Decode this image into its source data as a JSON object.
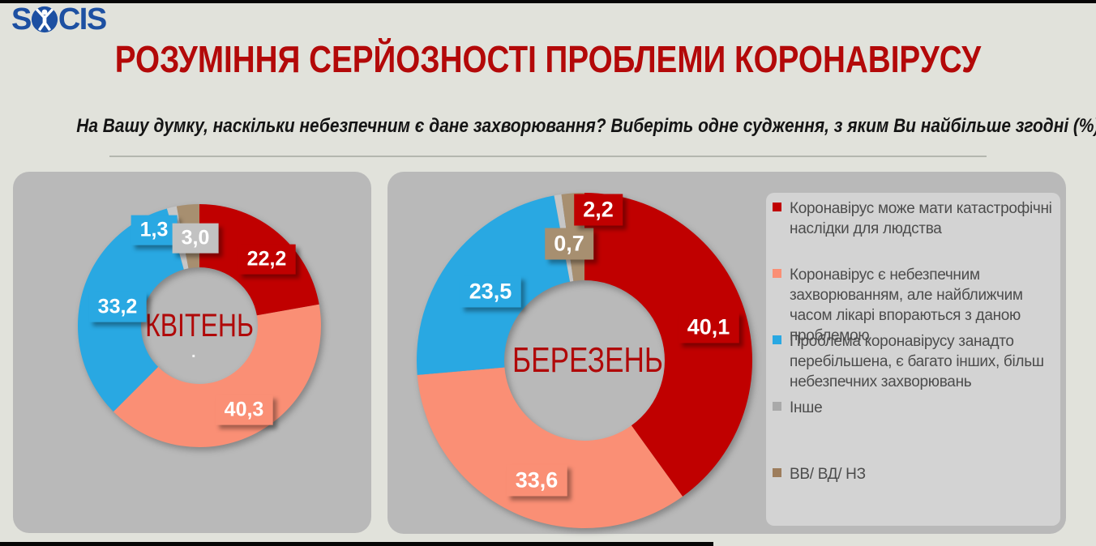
{
  "logo": {
    "part1": "S",
    "part2": "CIS",
    "icon": "person-in-circle"
  },
  "header": {
    "title": "РОЗУМІННЯ СЕРЙОЗНОСТІ ПРОБЛЕМИ КОРОНАВІРУСУ",
    "subtitle": "На Вашу думку, наскільки небезпечним є дане захворювання? Виберіть одне судження, з яким Ви найбільше згодні (%)"
  },
  "colors": {
    "page_bg": "#E1E2DB",
    "panel_bg": "#B9B9B9",
    "legend_bg": "#D3D3D3",
    "title_red": "#B30909",
    "dark_red": "#C00000",
    "salmon": "#FA8F75",
    "blue": "#29A8E2",
    "gray": "#C6C6C6",
    "brown": "#A78F70"
  },
  "legend": {
    "position": "right",
    "items": [
      {
        "label": "Коронавірус може мати катастрофічні наслідки для людства",
        "color": "#C00000"
      },
      {
        "label": "Коронавірус є небезпечним захворюванням, але найближчим часом лікарі впораються з даною проблемою",
        "color": "#FA8F75"
      },
      {
        "label": "Проблема коронавірусу занадто перебільшена, є багато інших, більш небезпечних захворювань",
        "color": "#29A8E2"
      },
      {
        "label": "Інше",
        "color": "#A9A9A9"
      },
      {
        "label": "ВВ/ ВД/ НЗ",
        "color": "#9D7D5C"
      }
    ]
  },
  "chart_data": [
    {
      "type": "pie",
      "subtype": "donut",
      "title": "КВІТЕНЬ",
      "center_note": ".",
      "categories": [
        "Коронавірус може мати катастрофічні наслідки для людства",
        "Коронавірус є небезпечним захворюванням, але найближчим часом лікарі впораються з даною проблемою",
        "Проблема коронавірусу занадто перебільшена, є багато інших, більш небезпечних захворювань",
        "Інше",
        "ВВ/ ВД/ НЗ"
      ],
      "values": [
        22.2,
        40.3,
        33.2,
        1.3,
        3.0
      ],
      "display_labels": [
        "22,2",
        "40,3",
        "33,2",
        "1,3",
        "3,0"
      ],
      "slice_colors": [
        "#C00000",
        "#FA8F75",
        "#29A8E2",
        "#C6C6C6",
        "#A78F70"
      ],
      "label_box_colors": [
        "#C00000",
        "#FA8F75",
        "#29A8E2",
        "#29A8E2",
        "#C2C2C2"
      ],
      "start_angle_deg": 0,
      "direction": "clockwise"
    },
    {
      "type": "pie",
      "subtype": "donut",
      "title": "БЕРЕЗЕНЬ",
      "center_note": "",
      "categories": [
        "Коронавірус може мати катастрофічні наслідки для людства",
        "Коронавірус є небезпечним захворюванням, але найближчим часом лікарі впораються з даною проблемою",
        "Проблема коронавірусу занадто перебільшена, є багато інших, більш небезпечних захворювань",
        "Інше",
        "ВВ/ ВД/ НЗ"
      ],
      "values": [
        40.1,
        33.6,
        23.5,
        0.7,
        2.2
      ],
      "display_labels": [
        "40,1",
        "33,6",
        "23,5",
        "0,7",
        "2,2"
      ],
      "slice_colors": [
        "#C00000",
        "#FA8F75",
        "#29A8E2",
        "#C6C6C6",
        "#A78F70"
      ],
      "label_box_colors": [
        "#C00000",
        "#FA8F75",
        "#29A8E2",
        "#A78F70",
        "#C00000"
      ],
      "start_angle_deg": 0,
      "direction": "clockwise"
    }
  ]
}
